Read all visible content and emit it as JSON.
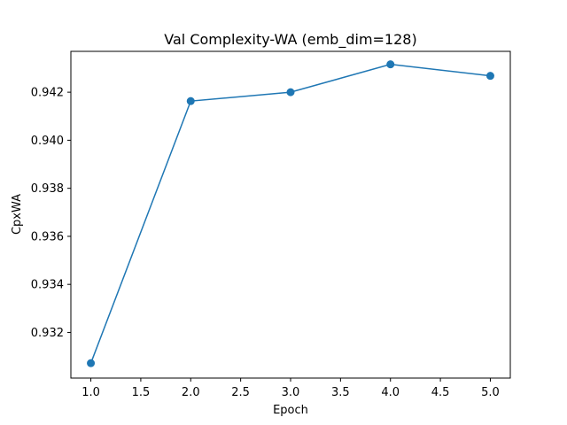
{
  "chart_data": {
    "type": "line",
    "title": "Val Complexity-WA (emb_dim=128)",
    "xlabel": "Epoch",
    "ylabel": "CpxWA",
    "x": [
      1.0,
      2.0,
      3.0,
      4.0,
      5.0
    ],
    "series": [
      {
        "values": [
          0.93072,
          0.94163,
          0.942,
          0.94316,
          0.94268
        ],
        "color": "#1f77b4",
        "marker": "circle"
      }
    ],
    "xlim": [
      0.8,
      5.2
    ],
    "ylim": [
      0.9301,
      0.9437
    ],
    "xticks": [
      1.0,
      1.5,
      2.0,
      2.5,
      3.0,
      3.5,
      4.0,
      4.5,
      5.0
    ],
    "xtick_labels": [
      "1.0",
      "1.5",
      "2.0",
      "2.5",
      "3.0",
      "3.5",
      "4.0",
      "4.5",
      "5.0"
    ],
    "yticks": [
      0.932,
      0.934,
      0.936,
      0.938,
      0.94,
      0.942
    ],
    "ytick_labels": [
      "0.932",
      "0.934",
      "0.936",
      "0.938",
      "0.940",
      "0.942"
    ],
    "grid": false,
    "legend": "none"
  }
}
